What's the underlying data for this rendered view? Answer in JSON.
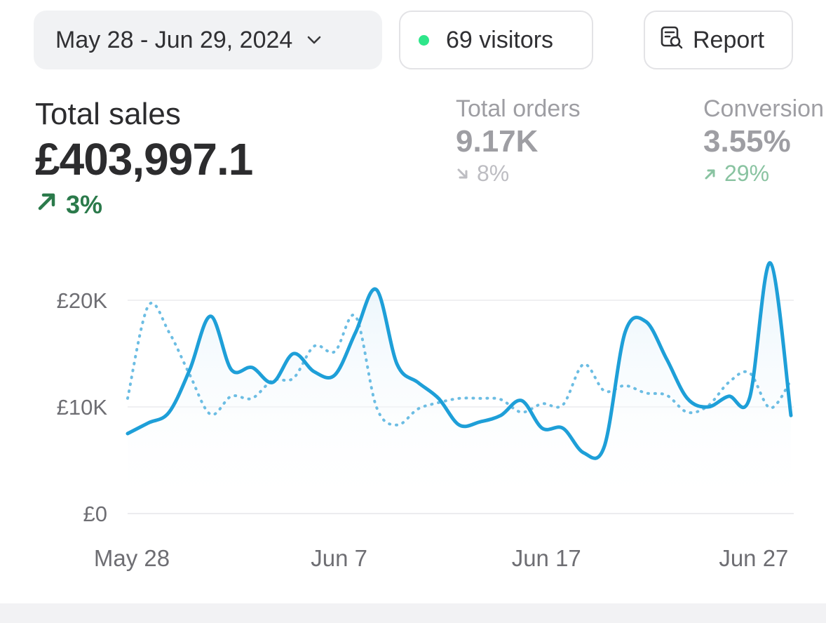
{
  "toolbar": {
    "date_range": "May 28 - Jun 29, 2024",
    "visitors": "69 visitors",
    "report": "Report"
  },
  "metrics": {
    "total_sales": {
      "label": "Total sales",
      "value": "£403,997.1",
      "delta": "3%",
      "direction": "up"
    },
    "total_orders": {
      "label": "Total orders",
      "value": "9.17K",
      "delta": "8%",
      "direction": "down"
    },
    "conversion": {
      "label": "Conversion",
      "value": "3.55%",
      "delta": "29%",
      "direction": "up"
    }
  },
  "colors": {
    "accent": "#35aee2",
    "positive": "#2b7a4b",
    "visitor_dot": "#2ee68a"
  },
  "icons": {
    "date_chevron": "chevron-down-icon",
    "report": "report-search-icon"
  },
  "chart_data": {
    "type": "line",
    "y_ticks": [
      "£20K",
      "£10K",
      "£0"
    ],
    "y_tick_values": [
      20000,
      10000,
      0
    ],
    "x_ticks": [
      "May 28",
      "Jun 7",
      "Jun 17",
      "Jun 27"
    ],
    "x_tick_index": [
      0,
      10,
      20,
      30
    ],
    "ylim": [
      0,
      25000
    ],
    "grid": "horizontal",
    "series": [
      {
        "style": "solid",
        "values": [
          7500,
          8500,
          9500,
          13500,
          18500,
          13500,
          13700,
          12300,
          15000,
          13300,
          13000,
          17000,
          21000,
          14000,
          12300,
          10800,
          8300,
          8600,
          9200,
          10600,
          8000,
          8000,
          5700,
          6300,
          17000,
          18000,
          14500,
          10800,
          10000,
          11000,
          10800,
          23500,
          9200
        ]
      },
      {
        "style": "dotted",
        "values": [
          10800,
          19500,
          17000,
          13000,
          9300,
          11000,
          10800,
          12500,
          12700,
          15700,
          15200,
          18500,
          10000,
          8300,
          9800,
          10400,
          10800,
          10800,
          10700,
          9500,
          10300,
          10200,
          14000,
          11500,
          12000,
          11300,
          11100,
          9500,
          10100,
          12300,
          13200,
          9900,
          12500
        ]
      }
    ]
  }
}
